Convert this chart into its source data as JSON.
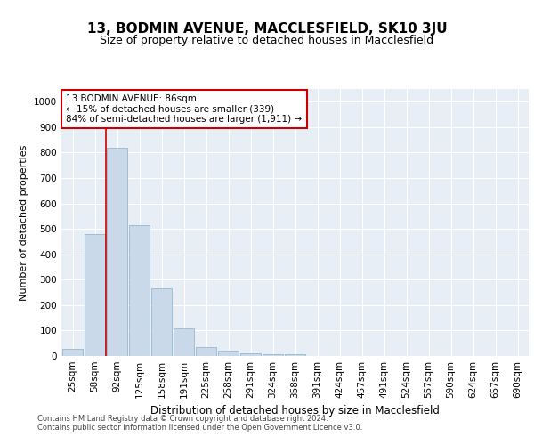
{
  "title": "13, BODMIN AVENUE, MACCLESFIELD, SK10 3JU",
  "subtitle": "Size of property relative to detached houses in Macclesfield",
  "xlabel": "Distribution of detached houses by size in Macclesfield",
  "ylabel": "Number of detached properties",
  "categories": [
    "25sqm",
    "58sqm",
    "92sqm",
    "125sqm",
    "158sqm",
    "191sqm",
    "225sqm",
    "258sqm",
    "291sqm",
    "324sqm",
    "358sqm",
    "391sqm",
    "424sqm",
    "457sqm",
    "491sqm",
    "524sqm",
    "557sqm",
    "590sqm",
    "624sqm",
    "657sqm",
    "690sqm"
  ],
  "values": [
    28,
    480,
    820,
    515,
    265,
    110,
    35,
    20,
    10,
    7,
    7,
    0,
    0,
    0,
    0,
    0,
    0,
    0,
    0,
    0,
    0
  ],
  "bar_color": "#c9d9ea",
  "bar_edge_color": "#8aaec8",
  "property_line_x": 1.5,
  "annotation_line1": "13 BODMIN AVENUE: 86sqm",
  "annotation_line2": "← 15% of detached houses are smaller (339)",
  "annotation_line3": "84% of semi-detached houses are larger (1,911) →",
  "annotation_box_color": "#ffffff",
  "annotation_box_edge_color": "#cc0000",
  "ylim": [
    0,
    1050
  ],
  "yticks": [
    0,
    100,
    200,
    300,
    400,
    500,
    600,
    700,
    800,
    900,
    1000
  ],
  "plot_bg_color": "#e8eef5",
  "grid_color": "#ffffff",
  "footer_line1": "Contains HM Land Registry data © Crown copyright and database right 2024.",
  "footer_line2": "Contains public sector information licensed under the Open Government Licence v3.0.",
  "title_fontsize": 11,
  "subtitle_fontsize": 9,
  "xlabel_fontsize": 8.5,
  "ylabel_fontsize": 8,
  "tick_fontsize": 7.5,
  "annotation_fontsize": 7.5,
  "footer_fontsize": 6
}
